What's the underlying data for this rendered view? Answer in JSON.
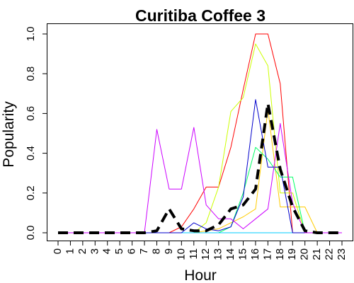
{
  "chart_data": {
    "type": "line",
    "title": "Curitiba Coffee 3",
    "xlabel": "Hour",
    "ylabel": "Popularity",
    "x": [
      0,
      1,
      2,
      3,
      4,
      5,
      6,
      7,
      8,
      9,
      10,
      11,
      12,
      13,
      14,
      15,
      16,
      17,
      18,
      19,
      20,
      21,
      22,
      23
    ],
    "x_tick_labels": [
      "0",
      "1",
      "2",
      "3",
      "4",
      "5",
      "6",
      "7",
      "8",
      "9",
      "10",
      "11",
      "12",
      "13",
      "14",
      "15",
      "16",
      "17",
      "18",
      "19",
      "20",
      "21",
      "22",
      "23"
    ],
    "y_ticks": [
      0.0,
      0.2,
      0.4,
      0.6,
      0.8,
      1.0
    ],
    "y_tick_labels": [
      "0.0",
      "0.2",
      "0.4",
      "0.6",
      "0.8",
      "1.0"
    ],
    "xlim": [
      0,
      23
    ],
    "ylim": [
      0,
      1.0
    ],
    "grid": false,
    "legend": "none",
    "series": [
      {
        "color": "#ff0000",
        "width": 1,
        "dash": "",
        "values": [
          0,
          0,
          0,
          0,
          0,
          0,
          0,
          0,
          0,
          0,
          0.03,
          0.12,
          0.23,
          0.23,
          0.43,
          0.72,
          1.0,
          1.0,
          0.75,
          0,
          0,
          0,
          0,
          0
        ]
      },
      {
        "color": "#ffcc00",
        "width": 1,
        "dash": "",
        "values": [
          0,
          0,
          0,
          0,
          0,
          0,
          0,
          0,
          0,
          0,
          0,
          0,
          0.01,
          0.02,
          0.05,
          0.08,
          0.12,
          0.62,
          0.13,
          0.13,
          0.13,
          0,
          0,
          0
        ]
      },
      {
        "color": "#ccff00",
        "width": 1,
        "dash": "",
        "values": [
          0,
          0,
          0,
          0,
          0,
          0,
          0,
          0,
          0,
          0,
          0,
          0,
          0.05,
          0.23,
          0.61,
          0.68,
          0.95,
          0.84,
          0.2,
          0.2,
          0,
          0,
          0,
          0
        ]
      },
      {
        "color": "#00ff66",
        "width": 1,
        "dash": "",
        "values": [
          0,
          0,
          0,
          0,
          0,
          0,
          0,
          0,
          0,
          0,
          0,
          0,
          0,
          0,
          0.03,
          0.2,
          0.43,
          0.37,
          0.28,
          0.28,
          0,
          0,
          0,
          0
        ]
      },
      {
        "color": "#00ccff",
        "width": 1,
        "dash": "",
        "values": [
          0,
          0,
          0,
          0,
          0,
          0,
          0,
          0,
          0,
          0,
          0,
          0,
          0,
          0,
          0,
          0,
          0,
          0,
          0,
          0,
          0,
          0,
          0,
          0
        ]
      },
      {
        "color": "#0000cc",
        "width": 1,
        "dash": "",
        "values": [
          0,
          0,
          0,
          0,
          0,
          0,
          0,
          0,
          0,
          0,
          0,
          0.05,
          0.02,
          0.01,
          0.03,
          0.18,
          0.67,
          0.33,
          0.33,
          0,
          0,
          0,
          0,
          0
        ]
      },
      {
        "color": "#cc00ff",
        "width": 1,
        "dash": "",
        "values": [
          0,
          0,
          0,
          0,
          0,
          0,
          0,
          0,
          0.52,
          0.22,
          0.22,
          0.53,
          0.14,
          0.07,
          0.07,
          0.02,
          0.07,
          0.12,
          0.55,
          0.15,
          0,
          0,
          0,
          0
        ]
      },
      {
        "color": "#000000",
        "width": 4,
        "dash": "14,8",
        "values": [
          0,
          0,
          0,
          0,
          0,
          0,
          0,
          0,
          0.01,
          0.12,
          0.02,
          0.01,
          0.01,
          0.04,
          0.12,
          0.14,
          0.22,
          0.65,
          0.32,
          0.13,
          0.01,
          0,
          0,
          0
        ]
      }
    ]
  }
}
